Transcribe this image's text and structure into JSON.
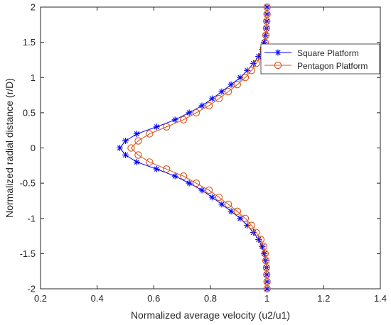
{
  "chart_data": {
    "type": "line",
    "xlabel": "Normalized average velocity (u2/u1)",
    "ylabel": "Normalized radial distance (r/D)",
    "xlim": [
      0.2,
      1.4
    ],
    "ylim": [
      -2,
      2
    ],
    "xticks": [
      "0.2",
      "0.4",
      "0.6",
      "0.8",
      "1",
      "1.2",
      "1.4"
    ],
    "yticks": [
      "-2",
      "-1.5",
      "-1",
      "-0.5",
      "0",
      "0.5",
      "1",
      "1.5",
      "2"
    ],
    "grid": false,
    "legend_position": "top-right",
    "series": [
      {
        "name": "Square Platform",
        "color": "#0000ff",
        "marker": "asterisk",
        "x": [
          1.0,
          1.0,
          0.999,
          0.998,
          0.995,
          0.99,
          0.983,
          0.97,
          0.952,
          0.93,
          0.905,
          0.873,
          0.84,
          0.806,
          0.77,
          0.725,
          0.675,
          0.61,
          0.54,
          0.5,
          0.48,
          0.5,
          0.54,
          0.61,
          0.675,
          0.725,
          0.77,
          0.806,
          0.84,
          0.873,
          0.905,
          0.93,
          0.952,
          0.97,
          0.983,
          0.99,
          0.995,
          0.998,
          0.999,
          1.0,
          1.0
        ],
        "y": [
          2.0,
          1.9,
          1.8,
          1.7,
          1.6,
          1.5,
          1.4,
          1.3,
          1.2,
          1.1,
          1.0,
          0.9,
          0.8,
          0.7,
          0.6,
          0.5,
          0.4,
          0.3,
          0.2,
          0.1,
          0.0,
          -0.1,
          -0.2,
          -0.3,
          -0.4,
          -0.5,
          -0.6,
          -0.7,
          -0.8,
          -0.9,
          -1.0,
          -1.1,
          -1.2,
          -1.3,
          -1.4,
          -1.5,
          -1.6,
          -1.7,
          -1.8,
          -1.9,
          -2.0
        ]
      },
      {
        "name": "Pentagon Platform",
        "color": "#d95319",
        "marker": "circle",
        "x": [
          1.0,
          1.0,
          0.999,
          0.998,
          0.996,
          0.993,
          0.988,
          0.978,
          0.962,
          0.945,
          0.923,
          0.895,
          0.863,
          0.83,
          0.795,
          0.75,
          0.705,
          0.645,
          0.585,
          0.545,
          0.52,
          0.545,
          0.585,
          0.645,
          0.705,
          0.75,
          0.795,
          0.83,
          0.863,
          0.895,
          0.923,
          0.945,
          0.962,
          0.978,
          0.988,
          0.993,
          0.996,
          0.998,
          0.999,
          1.0,
          1.0
        ],
        "y": [
          2.0,
          1.9,
          1.8,
          1.7,
          1.6,
          1.5,
          1.4,
          1.3,
          1.2,
          1.1,
          1.0,
          0.9,
          0.8,
          0.7,
          0.6,
          0.5,
          0.4,
          0.3,
          0.2,
          0.1,
          0.0,
          -0.1,
          -0.2,
          -0.3,
          -0.4,
          -0.5,
          -0.6,
          -0.7,
          -0.8,
          -0.9,
          -1.0,
          -1.1,
          -1.2,
          -1.3,
          -1.4,
          -1.5,
          -1.6,
          -1.7,
          -1.8,
          -1.9,
          -2.0
        ]
      }
    ]
  }
}
